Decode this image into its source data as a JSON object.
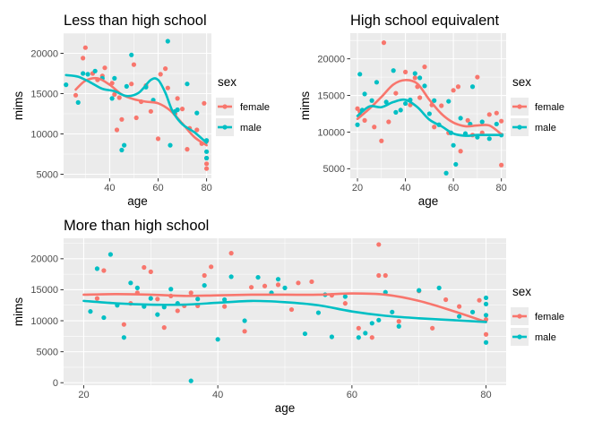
{
  "colors": {
    "female": "#F8766D",
    "male": "#00BFC4",
    "panel_bg": "#EBEBEB",
    "grid": "#FFFFFF",
    "text": "#000000",
    "tick_text": "#4D4D4D"
  },
  "chart_data": [
    {
      "type": "scatter",
      "title": "Less than high school",
      "xlabel": "age",
      "ylabel": "mims",
      "xlim": [
        21,
        82
      ],
      "ylim": [
        4500,
        22500
      ],
      "x_ticks": [
        40,
        60,
        80
      ],
      "y_ticks": [
        5000,
        10000,
        15000,
        20000
      ],
      "y_tick_labels": [
        "5000",
        "10000",
        "15000",
        "20000"
      ],
      "grid": true,
      "legend": {
        "title": "sex",
        "entries": [
          "female",
          "male"
        ],
        "position": "right"
      },
      "series": [
        {
          "name": "female",
          "x": [
            26,
            29,
            30,
            33,
            35,
            37,
            38,
            41,
            42,
            43,
            44,
            45,
            49,
            50,
            51,
            53,
            55,
            57,
            60,
            61,
            63,
            64,
            67,
            68,
            70,
            72,
            73,
            76,
            78,
            79,
            80,
            80,
            80,
            80
          ],
          "y": [
            14800,
            19400,
            20700,
            17500,
            16700,
            17200,
            18200,
            16300,
            14900,
            10500,
            14500,
            11800,
            16200,
            18600,
            12000,
            14000,
            16000,
            12800,
            9400,
            17400,
            18100,
            15700,
            12500,
            14400,
            13100,
            8100,
            10700,
            10500,
            8800,
            13800,
            6300,
            7000,
            5700,
            9100
          ],
          "smooth_x": [
            26,
            30,
            35,
            40,
            45,
            50,
            55,
            60,
            65,
            70,
            75,
            80
          ],
          "smooth_y": [
            15500,
            16600,
            16900,
            16100,
            14900,
            14300,
            14000,
            13800,
            12900,
            11300,
            9600,
            8600
          ]
        },
        {
          "name": "male",
          "x": [
            22,
            27,
            29,
            31,
            34,
            37,
            41,
            42,
            45,
            46,
            47,
            49,
            55,
            58,
            64,
            65,
            67,
            68,
            72,
            76,
            80,
            80,
            80
          ],
          "y": [
            16100,
            13900,
            17500,
            17400,
            17800,
            16900,
            14400,
            16900,
            8000,
            8600,
            15900,
            19800,
            15800,
            14200,
            21500,
            8600,
            12800,
            13000,
            16200,
            12600,
            9200,
            7000,
            7800
          ],
          "smooth_x": [
            22,
            27,
            32,
            37,
            42,
            47,
            52,
            57,
            60,
            63,
            66,
            70,
            75,
            80
          ],
          "smooth_y": [
            17300,
            17100,
            16400,
            15600,
            15300,
            14700,
            15100,
            16700,
            16700,
            15100,
            12800,
            11200,
            10200,
            8900
          ]
        }
      ]
    },
    {
      "type": "scatter",
      "title": "High school equivalent",
      "xlabel": "age",
      "ylabel": "mims",
      "xlim": [
        17,
        82
      ],
      "ylim": [
        3700,
        23500
      ],
      "x_ticks": [
        20,
        40,
        60,
        80
      ],
      "y_ticks": [
        5000,
        10000,
        15000,
        20000
      ],
      "y_tick_labels": [
        "5000",
        "10000",
        "15000",
        "20000"
      ],
      "grid": true,
      "legend": {
        "title": "sex",
        "entries": [
          "female",
          "male"
        ],
        "position": "right"
      },
      "series": [
        {
          "name": "female",
          "x": [
            20,
            21,
            23,
            27,
            30,
            31,
            33,
            36,
            40,
            42,
            44,
            45,
            46,
            48,
            51,
            52,
            55,
            58,
            60,
            62,
            63,
            66,
            68,
            70,
            72,
            75,
            78,
            80,
            80
          ],
          "y": [
            13200,
            12800,
            11600,
            10700,
            8800,
            22200,
            11400,
            15300,
            18200,
            13700,
            17400,
            16200,
            14700,
            18900,
            13700,
            10700,
            13600,
            9900,
            15700,
            16200,
            7400,
            11600,
            9600,
            17500,
            9900,
            12400,
            12600,
            11500,
            5500
          ],
          "smooth_x": [
            20,
            25,
            30,
            35,
            40,
            45,
            50,
            55,
            60,
            65,
            70,
            75,
            80
          ],
          "smooth_y": [
            11800,
            13200,
            14800,
            16500,
            17100,
            16600,
            14400,
            12500,
            11300,
            10800,
            10900,
            10900,
            9700
          ]
        },
        {
          "name": "male",
          "x": [
            20,
            21,
            21,
            22,
            23,
            26,
            28,
            32,
            35,
            36,
            38,
            40,
            42,
            44,
            46,
            48,
            50,
            52,
            54,
            57,
            58,
            59,
            60,
            61,
            63,
            65,
            67,
            68,
            70,
            72,
            75,
            78,
            80
          ],
          "y": [
            11000,
            12300,
            17900,
            13000,
            15200,
            14300,
            16800,
            14100,
            18400,
            12700,
            13000,
            13900,
            14400,
            18000,
            17400,
            16300,
            12500,
            14300,
            11000,
            4400,
            14200,
            9900,
            8200,
            5600,
            11900,
            9800,
            11100,
            16200,
            9300,
            11400,
            9100,
            11100,
            9600
          ],
          "smooth_x": [
            20,
            25,
            30,
            35,
            40,
            45,
            50,
            55,
            60,
            65,
            70,
            75,
            80
          ],
          "smooth_y": [
            12200,
            13500,
            13400,
            14100,
            14400,
            13400,
            11700,
            10800,
            9800,
            9500,
            9600,
            9600,
            9600
          ]
        }
      ]
    },
    {
      "type": "scatter",
      "title": "More than high school",
      "xlabel": "age",
      "ylabel": "mims",
      "xlim": [
        17,
        83
      ],
      "ylim": [
        -400,
        23300
      ],
      "x_ticks": [
        20,
        40,
        60,
        80
      ],
      "y_ticks": [
        0,
        5000,
        10000,
        15000,
        20000
      ],
      "y_tick_labels": [
        "0",
        "5000",
        "10000",
        "15000",
        "20000"
      ],
      "grid": true,
      "legend": {
        "title": "sex",
        "entries": [
          "female",
          "male"
        ],
        "position": "right"
      },
      "series": [
        {
          "name": "female",
          "x": [
            22,
            23,
            26,
            27,
            28,
            29,
            30,
            31,
            32,
            33,
            34,
            35,
            36,
            37,
            38,
            39,
            41,
            42,
            44,
            45,
            47,
            49,
            51,
            52,
            54,
            57,
            59,
            61,
            63,
            64,
            64,
            65,
            67,
            70,
            72,
            74,
            76,
            79,
            80,
            80
          ],
          "y": [
            13600,
            18100,
            9400,
            12800,
            14500,
            18600,
            17900,
            13500,
            8900,
            14000,
            11600,
            12400,
            14500,
            12400,
            17300,
            18700,
            12300,
            20900,
            8300,
            15400,
            15600,
            15800,
            11800,
            16100,
            16300,
            14100,
            12800,
            8800,
            7300,
            22300,
            17300,
            17300,
            9900,
            14800,
            8800,
            13400,
            12300,
            13300,
            10200,
            7800
          ],
          "smooth_x": [
            20,
            25,
            30,
            35,
            40,
            45,
            50,
            55,
            60,
            65,
            70,
            75,
            80
          ],
          "smooth_y": [
            14200,
            14300,
            14200,
            14000,
            14100,
            14200,
            14200,
            14200,
            14400,
            14200,
            13200,
            11600,
            9800
          ]
        },
        {
          "name": "male",
          "x": [
            21,
            22,
            23,
            24,
            25,
            26,
            27,
            28,
            29,
            30,
            31,
            32,
            33,
            34,
            36,
            37,
            38,
            40,
            41,
            42,
            44,
            46,
            48,
            49,
            50,
            53,
            55,
            56,
            57,
            59,
            61,
            62,
            63,
            64,
            65,
            66,
            67,
            70,
            73,
            76,
            78,
            80,
            80,
            80,
            80
          ],
          "y": [
            11500,
            18400,
            10500,
            20700,
            12500,
            7300,
            16100,
            15300,
            12300,
            13600,
            11000,
            12200,
            15100,
            12800,
            300,
            13500,
            15700,
            7000,
            13400,
            17100,
            10000,
            17000,
            14500,
            16700,
            15300,
            7900,
            11300,
            14200,
            7400,
            13900,
            7300,
            8000,
            9600,
            10100,
            14600,
            11400,
            9100,
            14900,
            15300,
            10700,
            11400,
            12700,
            10900,
            6500,
            13700
          ],
          "smooth_x": [
            20,
            25,
            30,
            35,
            40,
            45,
            50,
            55,
            60,
            65,
            70,
            75,
            80
          ],
          "smooth_y": [
            13200,
            12800,
            12600,
            12600,
            12900,
            13200,
            13000,
            12500,
            11500,
            10800,
            10400,
            10100,
            9800
          ]
        }
      ]
    }
  ]
}
